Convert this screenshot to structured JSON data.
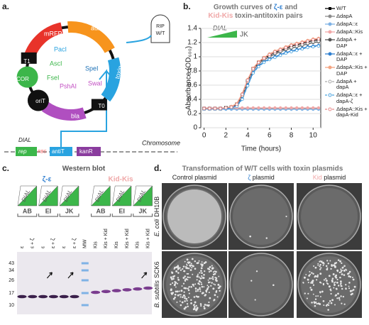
{
  "panel_labels": [
    "a.",
    "b.",
    "c.",
    "d."
  ],
  "plasmid": {
    "mrfp1": "mRFP1",
    "auxo": "auxo",
    "toxin": "toxin",
    "t0": "T0",
    "bla": "bla",
    "orit": "oriT",
    "cor": "COR",
    "t1": "T1",
    "sites": [
      "PacI",
      "AscI",
      "FseI",
      "PshAI",
      "SwaI",
      "SpeI"
    ],
    "tombstone": [
      "RIP",
      "W/T"
    ],
    "dial": "DIAL",
    "chromosome": "Chromosome",
    "rep": "rep",
    "rbs": "RBS",
    "antit": "antiT",
    "kanr": "kanR"
  },
  "chart_data": {
    "type": "line",
    "title": [
      "Growth curves of ",
      "ζ-ε",
      " and",
      "Kid-Kis",
      " toxin-antitoxin pairs"
    ],
    "x_label": "Time (hours)",
    "y_label": "Absorbance (OD₆₀₀)",
    "inset": [
      "DIAL",
      "JK"
    ],
    "x": [
      0,
      0.5,
      1,
      1.5,
      2,
      2.5,
      3,
      3.5,
      4,
      4.5,
      5,
      5.5,
      6,
      6.5,
      7,
      7.5,
      8,
      8.5,
      9,
      9.5,
      10,
      10.5
    ],
    "xlim": [
      -0.3,
      10.7
    ],
    "xticks": [
      0,
      2,
      4,
      6,
      8,
      10
    ],
    "ylim": [
      0,
      1.4
    ],
    "yticks": [
      0,
      0.2,
      0.4,
      0.6,
      0.8,
      1,
      1.2,
      1.4
    ],
    "grid": true,
    "series": [
      {
        "name": "W/T",
        "color": "#000000",
        "marker": "square",
        "dashed": false,
        "values": [
          0.27,
          0.27,
          0.27,
          0.27,
          0.28,
          0.29,
          0.33,
          0.46,
          0.66,
          0.83,
          0.92,
          0.98,
          1.02,
          1.06,
          1.09,
          1.12,
          1.15,
          1.17,
          1.19,
          1.21,
          1.23,
          1.24
        ]
      },
      {
        "name": "ΔdapA",
        "color": "#8c8c8c",
        "marker": "circle",
        "dashed": false,
        "values": [
          0.27,
          0.27,
          0.27,
          0.27,
          0.27,
          0.27,
          0.27,
          0.27,
          0.27,
          0.27,
          0.27,
          0.27,
          0.27,
          0.27,
          0.27,
          0.27,
          0.27,
          0.27,
          0.27,
          0.27,
          0.27,
          0.27
        ]
      },
      {
        "name": "ΔdapA::ε",
        "color": "#7fb2e5",
        "marker": "circle",
        "dashed": false,
        "values": [
          0.26,
          0.26,
          0.26,
          0.26,
          0.26,
          0.26,
          0.26,
          0.26,
          0.26,
          0.26,
          0.26,
          0.26,
          0.26,
          0.26,
          0.26,
          0.26,
          0.26,
          0.26,
          0.26,
          0.26,
          0.26,
          0.26
        ]
      },
      {
        "name": "ΔdapA::Kis",
        "color": "#f0a8a8",
        "marker": "circle",
        "dashed": false,
        "values": [
          0.28,
          0.28,
          0.28,
          0.28,
          0.28,
          0.28,
          0.28,
          0.28,
          0.28,
          0.28,
          0.28,
          0.28,
          0.28,
          0.28,
          0.28,
          0.28,
          0.28,
          0.28,
          0.28,
          0.28,
          0.28,
          0.28
        ]
      },
      {
        "name": "ΔdapA + DAP",
        "color": "#555555",
        "marker": "circle",
        "dashed": false,
        "values": [
          0.27,
          0.27,
          0.27,
          0.27,
          0.28,
          0.29,
          0.32,
          0.44,
          0.64,
          0.81,
          0.9,
          0.96,
          1.0,
          1.04,
          1.07,
          1.1,
          1.12,
          1.14,
          1.16,
          1.18,
          1.2,
          1.21
        ]
      },
      {
        "name": "ΔdapA::ε + DAP",
        "color": "#2f7fd0",
        "marker": "circle",
        "dashed": false,
        "values": [
          0.27,
          0.27,
          0.27,
          0.27,
          0.27,
          0.28,
          0.31,
          0.41,
          0.6,
          0.78,
          0.87,
          0.93,
          0.97,
          1.0,
          1.03,
          1.06,
          1.08,
          1.1,
          1.12,
          1.14,
          1.15,
          1.16
        ]
      },
      {
        "name": "ΔdapA::Kis + DAP",
        "color": "#f4a582",
        "marker": "circle",
        "dashed": false,
        "values": [
          0.27,
          0.27,
          0.27,
          0.27,
          0.28,
          0.3,
          0.34,
          0.48,
          0.68,
          0.84,
          0.93,
          0.99,
          1.04,
          1.08,
          1.11,
          1.14,
          1.17,
          1.19,
          1.21,
          1.23,
          1.25,
          1.26
        ]
      },
      {
        "name": "ΔdapA + dapA",
        "color": "#aaaaaa",
        "marker": "circle",
        "dashed": true,
        "values": [
          0.27,
          0.27,
          0.27,
          0.27,
          0.28,
          0.29,
          0.33,
          0.45,
          0.65,
          0.82,
          0.91,
          0.97,
          1.01,
          1.05,
          1.08,
          1.11,
          1.13,
          1.15,
          1.17,
          1.19,
          1.21,
          1.22
        ]
      },
      {
        "name": "ΔdapA::ε + dapA-ζ",
        "color": "#4aa3df",
        "marker": "circle",
        "dashed": true,
        "values": [
          0.27,
          0.27,
          0.27,
          0.27,
          0.27,
          0.28,
          0.3,
          0.4,
          0.59,
          0.77,
          0.86,
          0.92,
          0.96,
          0.99,
          1.02,
          1.05,
          1.07,
          1.09,
          1.11,
          1.13,
          1.14,
          1.15
        ]
      },
      {
        "name": "ΔdapA::Kis + dapA-Kid",
        "color": "#e88a8a",
        "marker": "circle",
        "dashed": true,
        "values": [
          0.27,
          0.27,
          0.27,
          0.27,
          0.28,
          0.29,
          0.33,
          0.47,
          0.67,
          0.83,
          0.92,
          0.98,
          1.03,
          1.07,
          1.1,
          1.13,
          1.16,
          1.18,
          1.2,
          1.22,
          1.24,
          1.25
        ]
      }
    ]
  },
  "blot": {
    "title": "Western blot",
    "pairs": [
      "ζ-ε",
      "Kid-Kis"
    ],
    "dial": "DIAL",
    "strains": [
      "AB",
      "EI",
      "JK",
      "AB",
      "EI",
      "JK"
    ],
    "lanes": [
      "ε",
      "ε + ζ",
      "ε",
      "ε + ζ",
      "ε",
      "ε + ζ",
      "MW",
      "Kis",
      "Kis + Kid",
      "Kis",
      "Kis + Kid",
      "Kis",
      "Kis + Kid"
    ],
    "mw": [
      "43",
      "34",
      "26",
      "17",
      "10"
    ]
  },
  "plates": {
    "title": "Transformation of W/T cells with toxin plasmids",
    "columns": [
      [
        "Control plasmid"
      ],
      [
        "ζ",
        " plasmid"
      ],
      [
        "Kid",
        " plasmid"
      ]
    ],
    "rows": [
      {
        "species": "E. coli",
        "strain": "DH10B"
      },
      {
        "species": "B. subtilis",
        "strain": "SCK6"
      }
    ]
  }
}
